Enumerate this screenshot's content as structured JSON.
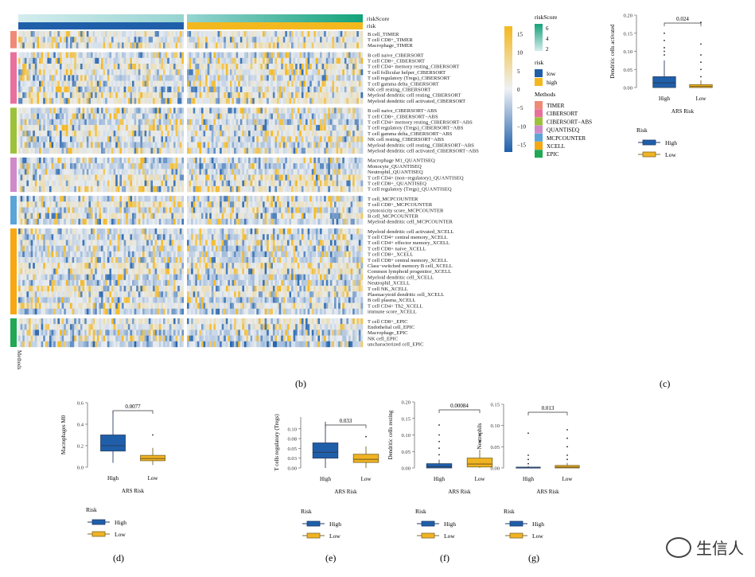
{
  "colors": {
    "high": "#1f5faa",
    "low": "#f0b323",
    "heat_low": "#1f5faa",
    "heat_mid": "#e8edf3",
    "heat_high": "#f4b81f",
    "method_TIMER": "#ef8a78",
    "method_CIBERSORT": "#e8709b",
    "method_CIBERSORT-ABS": "#9bc23a",
    "method_QUANTISEQ": "#cf8ac9",
    "method_MCPCOUNTER": "#5aa4d8",
    "method_XCELL": "#f6a712",
    "method_EPIC": "#20a854"
  },
  "panel_labels": [
    "(b)",
    "(c)",
    "(d)",
    "(e)",
    "(f)",
    "(g)"
  ],
  "heatmap": {
    "top_labels": [
      "riskScore",
      "risk"
    ],
    "side_label": "Methods",
    "colorbar_ticks": [
      "15",
      "10",
      "5",
      "0",
      "−5",
      "−10",
      "−15"
    ],
    "legend": {
      "riskScore_title": "riskScore",
      "riskScore_ticks": [
        "6",
        "4",
        "2"
      ],
      "risk_title": "risk",
      "risk_items": [
        "low",
        "high"
      ],
      "methods_title": "Methods",
      "methods": [
        "TIMER",
        "CIBERSORT",
        "CIBERSORT−ABS",
        "QUANTISEQ",
        "MCPCOUNTER",
        "XCELL",
        "EPIC"
      ]
    },
    "groups": [
      {
        "method": "TIMER",
        "rows": [
          "B cell_TIMER",
          "T cell CD8+_TIMER",
          "Macrophage_TIMER"
        ]
      },
      {
        "method": "CIBERSORT",
        "rows": [
          "B cell naive_CIBERSORT",
          "T cell CD8+_CIBERSORT",
          "T cell CD4+ memory resting_CIBERSORT",
          "T cell follicular helper_CIBERSORT",
          "T cell regulatory (Tregs)_CIBERSORT",
          "T cell gamma delta_CIBERSORT",
          "NK cell resting_CIBERSORT",
          "Myeloid dendritic cell resting_CIBERSORT",
          "Myeloid dendritic cell activated_CIBERSORT"
        ]
      },
      {
        "method": "CIBERSORT-ABS",
        "rows": [
          "B cell naive_CIBERSORT−ABS",
          "T cell CD8+_CIBERSORT−ABS",
          "T cell CD4+ memory resting_CIBERSORT−ABS",
          "T cell regulatory (Tregs)_CIBERSORT−ABS",
          "T cell gamma delta_CIBERSORT−ABS",
          "NK cell resting_CIBERSORT−ABS",
          "Myeloid dendritic cell resting_CIBERSORT−ABS",
          "Myeloid dendritic cell activated_CIBERSORT−ABS"
        ]
      },
      {
        "method": "QUANTISEQ",
        "rows": [
          "Macrophage M1_QUANTISEQ",
          "Monocyte_QUANTISEQ",
          "Neutrophil_QUANTISEQ",
          "T cell CD4+ (non−regulatory)_QUANTISEQ",
          "T cell CD8+_QUANTISEQ",
          "T cell regulatory (Tregs)_QUANTISEQ"
        ]
      },
      {
        "method": "MCPCOUNTER",
        "rows": [
          "T cell_MCPCOUNTER",
          "T cell CD8+_MCPCOUNTER",
          "cytotoxicity score_MCPCOUNTER",
          "B cell_MCPCOUNTER",
          "Myeloid dendritic cell_MCPCOUNTER"
        ]
      },
      {
        "method": "XCELL",
        "rows": [
          "Myeloid dendritic cell activated_XCELL",
          "T cell CD4+ central memory_XCELL",
          "T cell CD4+ effector memory_XCELL",
          "T cell CD8+ naive_XCELL",
          "T cell CD8+_XCELL",
          "T cell CD8+ central memory_XCELL",
          "Class−switched memory B cell_XCELL",
          "Common lymphoid progenitor_XCELL",
          "Myeloid dendritic cell_XCELL",
          "Neutrophil_XCELL",
          "T cell NK_XCELL",
          "Plasmacytoid dendritic cell_XCELL",
          "B cell plasma_XCELL",
          "T cell CD4+ Th2_XCELL",
          "immune score_XCELL"
        ]
      },
      {
        "method": "EPIC",
        "rows": [
          "T cell CD8+_EPIC",
          "Endothelial cell_EPIC",
          "Macrophage_EPIC",
          "NK cell_EPIC",
          "uncharacterized cell_EPIC"
        ]
      }
    ]
  },
  "legend_box": {
    "title": "Risk",
    "items": [
      "High",
      "Low"
    ]
  },
  "chart_data": [
    {
      "panel": "(c)",
      "type": "box",
      "title": "",
      "xlabel": "ARS Risk",
      "ylabel": "Dendritic cells activated",
      "categories": [
        "High",
        "Low"
      ],
      "ylim": [
        0,
        0.2
      ],
      "yticks": [
        "0.00",
        "0.05",
        "0.10",
        "0.15",
        "0.20"
      ],
      "pvalue": "0.024",
      "boxes": [
        {
          "q1": 0.0,
          "median": 0.013,
          "q3": 0.03,
          "whisker_low": 0.0,
          "whisker_high": 0.075
        },
        {
          "q1": 0.0,
          "median": 0.003,
          "q3": 0.008,
          "whisker_low": 0.0,
          "whisker_high": 0.02
        }
      ],
      "outliers": [
        [
          0.09,
          0.1,
          0.11,
          0.13,
          0.15
        ],
        [
          0.03,
          0.05,
          0.07,
          0.09,
          0.12,
          0.18
        ]
      ]
    },
    {
      "panel": "(d)",
      "type": "box",
      "title": "",
      "xlabel": "ARS Risk",
      "ylabel": "Macrophages M0",
      "categories": [
        "High",
        "Low"
      ],
      "ylim": [
        0,
        0.6
      ],
      "yticks": [
        "0.0",
        "0.2",
        "0.4",
        "0.6"
      ],
      "pvalue": "0.0077",
      "boxes": [
        {
          "q1": 0.15,
          "median": 0.2,
          "q3": 0.3,
          "whisker_low": 0.04,
          "whisker_high": 0.52
        },
        {
          "q1": 0.06,
          "median": 0.08,
          "q3": 0.11,
          "whisker_low": 0.02,
          "whisker_high": 0.18
        }
      ],
      "outliers": [
        [],
        [
          0.3
        ]
      ]
    },
    {
      "panel": "(e)",
      "type": "box",
      "title": "",
      "xlabel": "ARS Risk",
      "ylabel": "T cells regulatory (Tregs)",
      "categories": [
        "High",
        "Low"
      ],
      "ylim": [
        0,
        0.13
      ],
      "yticks": [
        "0.00",
        "0.03",
        "0.05",
        "0.08",
        "0.10"
      ],
      "pvalue": "0.033",
      "boxes": [
        {
          "q1": 0.025,
          "median": 0.04,
          "q3": 0.064,
          "whisker_low": 0.0,
          "whisker_high": 0.118
        },
        {
          "q1": 0.014,
          "median": 0.022,
          "q3": 0.035,
          "whisker_low": 0.0,
          "whisker_high": 0.055
        }
      ],
      "outliers": [
        [],
        [
          0.08
        ]
      ]
    },
    {
      "panel": "(f)",
      "type": "box",
      "title": "",
      "xlabel": "ARS Risk",
      "ylabel": "Dendritic cells resting",
      "categories": [
        "High",
        "Low"
      ],
      "ylim": [
        0,
        0.2
      ],
      "yticks": [
        "0.00",
        "0.05",
        "0.10",
        "0.15",
        "0.20"
      ],
      "pvalue": "0.00084",
      "boxes": [
        {
          "q1": 0.0,
          "median": 0.004,
          "q3": 0.013,
          "whisker_low": 0.0,
          "whisker_high": 0.025
        },
        {
          "q1": 0.003,
          "median": 0.012,
          "q3": 0.03,
          "whisker_low": 0.0,
          "whisker_high": 0.055
        }
      ],
      "outliers": [
        [
          0.04,
          0.06,
          0.08,
          0.1,
          0.13
        ],
        [
          0.08,
          0.1
        ]
      ]
    },
    {
      "panel": "(g)",
      "type": "box",
      "title": "",
      "xlabel": "ARS Risk",
      "ylabel": "Neutrophils",
      "categories": [
        "High",
        "Low"
      ],
      "ylim": [
        0,
        0.15
      ],
      "yticks": [
        "0.00",
        "0.05",
        "0.10",
        "0.15"
      ],
      "pvalue": "0.013",
      "boxes": [
        {
          "q1": 0.0,
          "median": 0.0,
          "q3": 0.002,
          "whisker_low": 0.0,
          "whisker_high": 0.004
        },
        {
          "q1": 0.0,
          "median": 0.002,
          "q3": 0.006,
          "whisker_low": 0.0,
          "whisker_high": 0.012
        }
      ],
      "outliers": [
        [
          0.01,
          0.02,
          0.03,
          0.082
        ],
        [
          0.02,
          0.03,
          0.05,
          0.07,
          0.09
        ]
      ]
    }
  ],
  "watermark": {
    "text": "生信人",
    "icon": "wechat-icon"
  }
}
